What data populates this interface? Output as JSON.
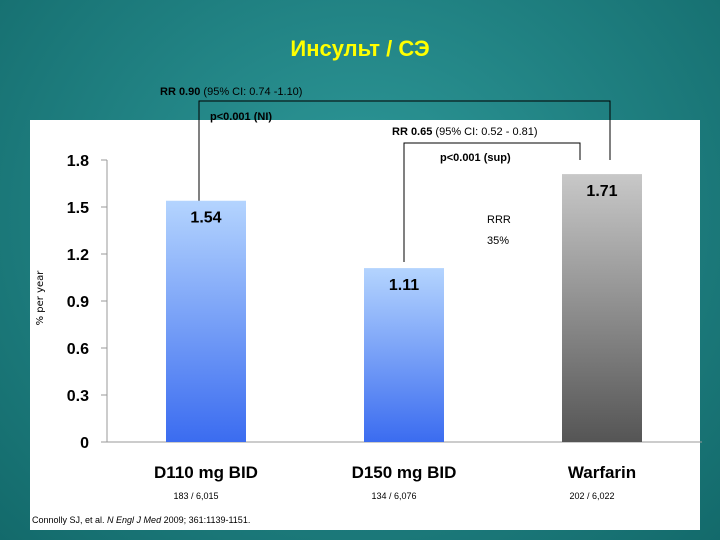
{
  "title": "Инсульт / СЭ",
  "annotations": {
    "rr1_bold": "RR 0.90",
    "rr1_rest": " (95% CI: 0.74 -1.10)",
    "p1": "p<0.001 (NI)",
    "rr2_bold": "RR 0.65",
    "rr2_rest": " (95% CI: 0.52 - 0.81)",
    "p2": "p<0.001 (sup)",
    "rrr_line1": "RRR",
    "rrr_line2": "35%"
  },
  "citation": {
    "prefix": "Connolly SJ, et al. ",
    "journal": "N Engl J Med",
    "suffix": " 2009; 361:1139-1151."
  },
  "colors": {
    "dabigatran_top": "#b4d4fe",
    "dabigatran_bottom": "#3b6cf0",
    "warfarin_top": "#c8c8c8",
    "warfarin_bottom": "#555555"
  },
  "chart_data": {
    "type": "bar",
    "ylabel": "% per year",
    "ylim": [
      0,
      1.8
    ],
    "yticks": [
      "0",
      "0.3",
      "0.6",
      "0.9",
      "1.2",
      "1.5",
      "1.8"
    ],
    "categories": [
      "D110 mg BID",
      "D150 mg BID",
      "Warfarin"
    ],
    "values": [
      1.54,
      1.11,
      1.71
    ],
    "value_labels": [
      "1.54",
      "1.11",
      "1.71"
    ],
    "events": [
      "183 / 6,015",
      "134 / 6,076",
      "202 / 6,022"
    ]
  }
}
